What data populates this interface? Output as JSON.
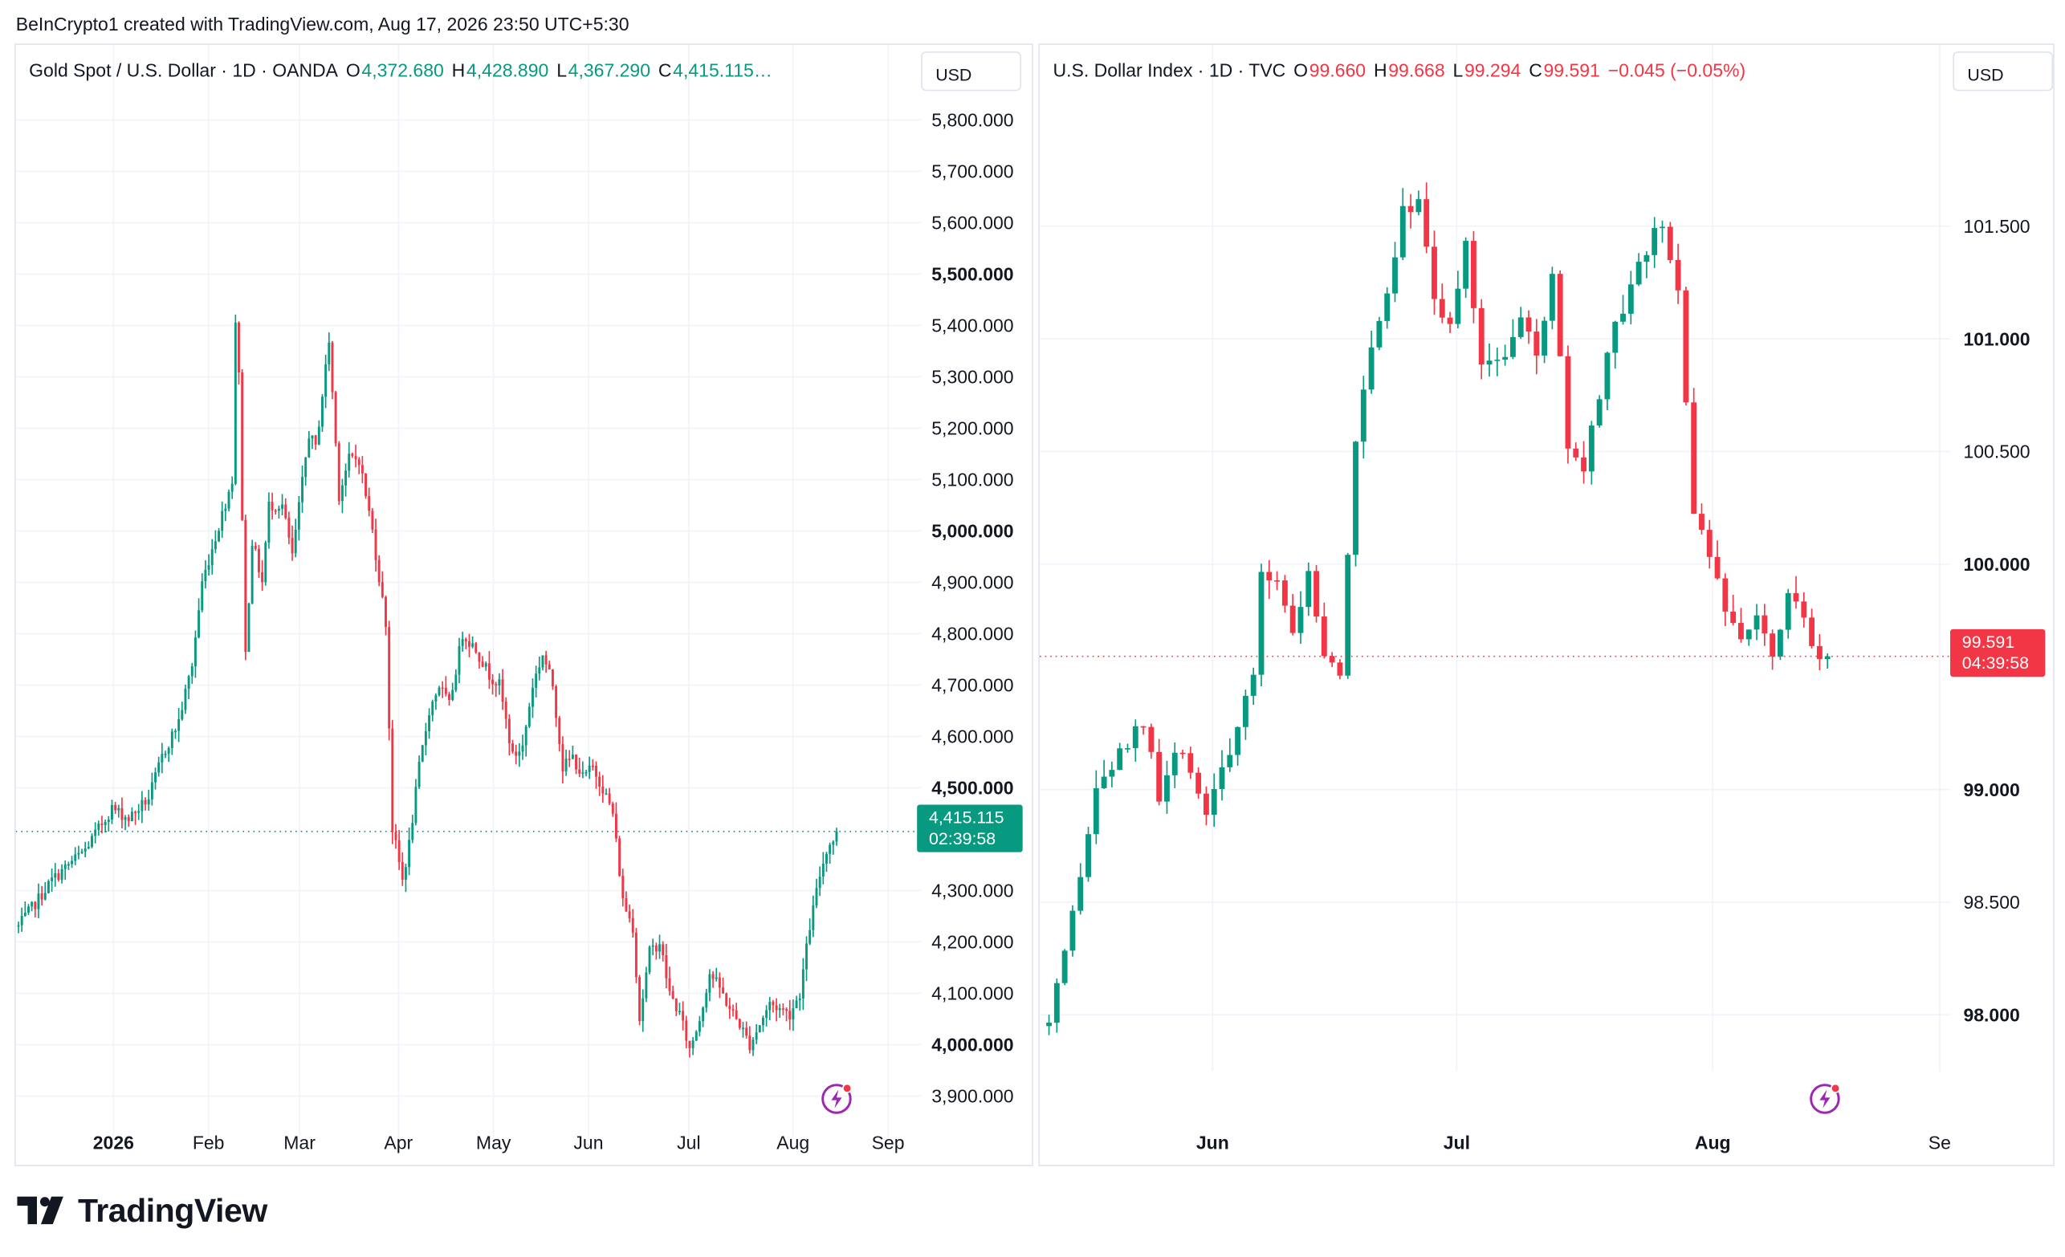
{
  "header": {
    "credit": "BeInCrypto1 created with TradingView.com, Aug 17, 2026 23:50 UTC+5:30"
  },
  "colors": {
    "up": "#089981",
    "down": "#f23645",
    "grid": "#f0f3fa",
    "axis_text": "#131722"
  },
  "footer": {
    "logo_text": "TradingView",
    "logo_icon": "tradingview-logo-icon"
  },
  "chart_data": [
    {
      "type": "candlestick",
      "symbol": "Gold Spot / U.S. Dollar · 1D · OANDA",
      "ohlc_open_label": "O",
      "ohlc_open": "4,372.680",
      "ohlc_high_label": "H",
      "ohlc_high": "4,428.890",
      "ohlc_low_label": "L",
      "ohlc_low": "4,367.290",
      "ohlc_close_label": "C",
      "ohlc_close": "4,415.115…",
      "currency": "USD",
      "ylim": [
        3820,
        5900
      ],
      "y_ticks": [
        "5,800.000",
        "5,700.000",
        "5,600.000",
        "5,500.000",
        "5,400.000",
        "5,300.000",
        "5,200.000",
        "5,100.000",
        "5,000.000",
        "4,900.000",
        "4,800.000",
        "4,700.000",
        "4,600.000",
        "4,500.000",
        "4,300.000",
        "4,200.000",
        "4,100.000",
        "4,000.000",
        "3,900.000"
      ],
      "x_ticks": [
        "2026",
        "Feb",
        "Mar",
        "Apr",
        "May",
        "Jun",
        "Jul",
        "Aug",
        "Sep"
      ],
      "last_price": "4,415.115",
      "countdown": "02:39:58",
      "last_value": 4415.115,
      "anchor_points": [
        [
          0,
          4230
        ],
        [
          10,
          4320
        ],
        [
          20,
          4380
        ],
        [
          28,
          4460
        ],
        [
          33,
          4440
        ],
        [
          39,
          4480
        ],
        [
          43,
          4560
        ],
        [
          48,
          4630
        ],
        [
          52,
          4740
        ],
        [
          55,
          4900
        ],
        [
          60,
          5010
        ],
        [
          64,
          5100
        ],
        [
          65,
          5410
        ],
        [
          66,
          5300
        ],
        [
          68,
          4760
        ],
        [
          70,
          4980
        ],
        [
          73,
          4900
        ],
        [
          75,
          5050
        ],
        [
          79,
          5050
        ],
        [
          82,
          4950
        ],
        [
          87,
          5190
        ],
        [
          89,
          5160
        ],
        [
          93,
          5370
        ],
        [
          96,
          5070
        ],
        [
          99,
          5140
        ],
        [
          102,
          5140
        ],
        [
          106,
          5000
        ],
        [
          110,
          4820
        ],
        [
          112,
          4420
        ],
        [
          115,
          4320
        ],
        [
          117,
          4390
        ],
        [
          120,
          4540
        ],
        [
          123,
          4650
        ],
        [
          126,
          4700
        ],
        [
          129,
          4660
        ],
        [
          133,
          4800
        ],
        [
          137,
          4770
        ],
        [
          141,
          4720
        ],
        [
          144,
          4700
        ],
        [
          148,
          4560
        ],
        [
          151,
          4580
        ],
        [
          154,
          4700
        ],
        [
          157,
          4760
        ],
        [
          160,
          4700
        ],
        [
          163,
          4540
        ],
        [
          166,
          4560
        ],
        [
          169,
          4520
        ],
        [
          172,
          4540
        ],
        [
          175,
          4500
        ],
        [
          178,
          4450
        ],
        [
          181,
          4280
        ],
        [
          184,
          4230
        ],
        [
          186,
          4050
        ],
        [
          189,
          4180
        ],
        [
          192,
          4200
        ],
        [
          195,
          4100
        ],
        [
          198,
          4060
        ],
        [
          201,
          3990
        ],
        [
          204,
          4050
        ],
        [
          207,
          4140
        ],
        [
          210,
          4110
        ],
        [
          213,
          4070
        ],
        [
          216,
          4040
        ],
        [
          219,
          4000
        ],
        [
          222,
          4040
        ],
        [
          225,
          4080
        ],
        [
          228,
          4070
        ],
        [
          231,
          4060
        ],
        [
          234,
          4100
        ],
        [
          237,
          4230
        ],
        [
          240,
          4330
        ],
        [
          242,
          4380
        ],
        [
          244,
          4400
        ],
        [
          245,
          4415
        ]
      ],
      "candle_count": 246
    },
    {
      "type": "candlestick",
      "symbol": "U.S. Dollar Index · 1D · TVC",
      "ohlc_open_label": "O",
      "ohlc_open": "99.660",
      "ohlc_high_label": "H",
      "ohlc_high": "99.668",
      "ohlc_low_label": "L",
      "ohlc_low": "99.294",
      "ohlc_close_label": "C",
      "ohlc_close": "99.591",
      "change": "−0.045 (−0.05%)",
      "currency": "USD",
      "ylim": [
        97.75,
        102.0
      ],
      "y_ticks": [
        "101.500",
        "101.000",
        "100.500",
        "100.000",
        "99.000",
        "98.500",
        "98.000"
      ],
      "x_ticks": [
        "Jun",
        "Jul",
        "Aug",
        "Se"
      ],
      "last_price": "99.591",
      "countdown": "04:39:58",
      "last_value": 99.591,
      "anchor_points": [
        [
          0,
          97.95
        ],
        [
          2,
          98.25
        ],
        [
          4,
          98.6
        ],
        [
          6,
          99.0
        ],
        [
          9,
          99.15
        ],
        [
          12,
          99.3
        ],
        [
          14,
          98.95
        ],
        [
          16,
          99.15
        ],
        [
          18,
          99.1
        ],
        [
          20,
          98.9
        ],
        [
          22,
          99.1
        ],
        [
          24,
          99.25
        ],
        [
          26,
          99.5
        ],
        [
          27,
          99.95
        ],
        [
          29,
          99.95
        ],
        [
          31,
          99.7
        ],
        [
          33,
          99.95
        ],
        [
          35,
          99.6
        ],
        [
          37,
          99.5
        ],
        [
          39,
          100.55
        ],
        [
          41,
          101.0
        ],
        [
          43,
          101.2
        ],
        [
          45,
          101.6
        ],
        [
          47,
          101.6
        ],
        [
          49,
          101.2
        ],
        [
          51,
          101.05
        ],
        [
          53,
          101.4
        ],
        [
          55,
          100.9
        ],
        [
          58,
          100.95
        ],
        [
          60,
          101.1
        ],
        [
          62,
          100.9
        ],
        [
          64,
          101.3
        ],
        [
          66,
          100.5
        ],
        [
          68,
          100.4
        ],
        [
          70,
          100.75
        ],
        [
          72,
          101.05
        ],
        [
          74,
          101.2
        ],
        [
          76,
          101.4
        ],
        [
          78,
          101.5
        ],
        [
          80,
          101.2
        ],
        [
          82,
          100.25
        ],
        [
          84,
          100.0
        ],
        [
          86,
          99.8
        ],
        [
          88,
          99.7
        ],
        [
          90,
          99.8
        ],
        [
          92,
          99.6
        ],
        [
          94,
          99.9
        ],
        [
          96,
          99.75
        ],
        [
          98,
          99.6
        ],
        [
          99,
          99.591
        ]
      ],
      "candle_count": 100
    }
  ]
}
